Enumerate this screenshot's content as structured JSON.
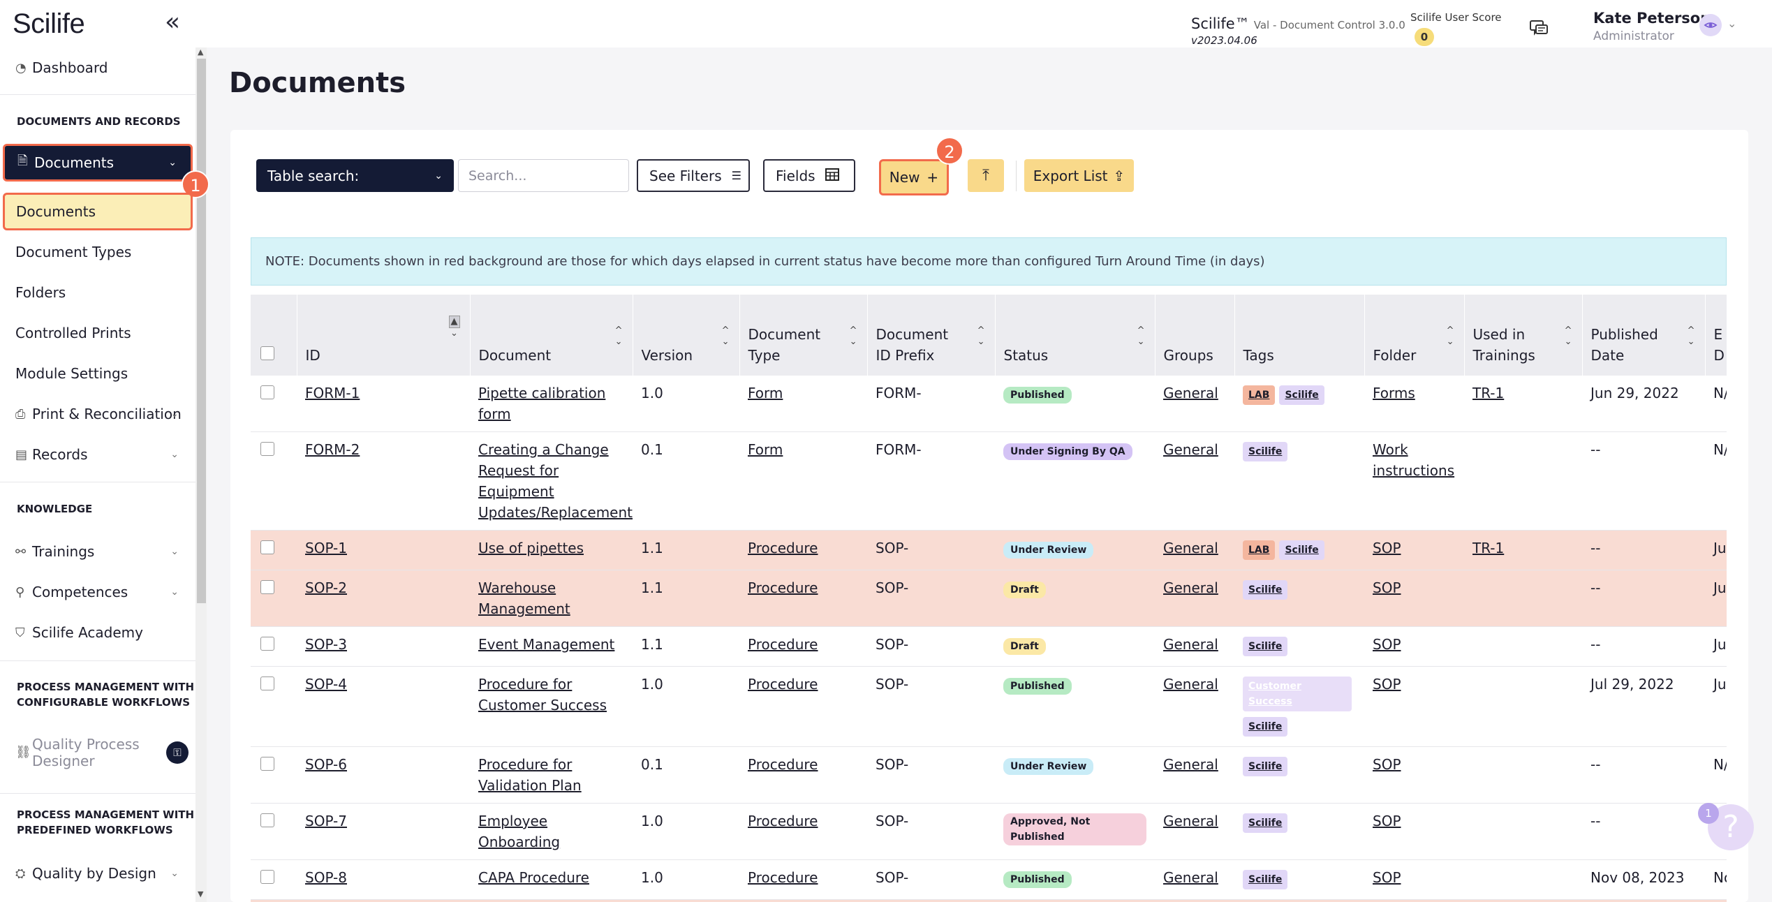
{
  "header": {
    "logo": "Scilife",
    "app_name": "Scilife™",
    "app_env": "Val - Document Control 3.0.0",
    "app_version": "v2023.04.06",
    "score_label": "Scilife User Score",
    "score_value": "0",
    "user_name": "Kate Peterson",
    "user_role": "Administrator"
  },
  "sidebar": {
    "dashboard": "Dashboard",
    "section_docs": "DOCUMENTS AND RECORDS",
    "documents_parent": "Documents",
    "documents_child": "Documents",
    "document_types": "Document Types",
    "folders": "Folders",
    "controlled_prints": "Controlled Prints",
    "module_settings": "Module Settings",
    "print_reconciliation": "Print & Reconciliation",
    "records": "Records",
    "section_knowledge": "KNOWLEDGE",
    "trainings": "Trainings",
    "competences": "Competences",
    "academy": "Scilife Academy",
    "section_pm_config_1": "PROCESS MANAGEMENT WITH",
    "section_pm_config_2": "CONFIGURABLE WORKFLOWS",
    "qpd_1": "Quality Process",
    "qpd_2": "Designer",
    "section_pm_pre_1": "PROCESS MANAGEMENT WITH",
    "section_pm_pre_2": "PREDEFINED WORKFLOWS",
    "qbd": "Quality by Design",
    "step1": "1",
    "step2": "2"
  },
  "main": {
    "title": "Documents",
    "table_search": "Table search:",
    "search_placeholder": "Search...",
    "see_filters": "See Filters",
    "fields": "Fields",
    "new": "New",
    "export": "Export List",
    "note": "NOTE: Documents shown in red background are those for which days elapsed in current status have become more than configured Turn Around Time (in days)"
  },
  "table": {
    "headers": {
      "id": "ID",
      "document": "Document",
      "version": "Version",
      "type_1": "Document",
      "type_2": "Type",
      "prefix_1": "Document",
      "prefix_2": "ID Prefix",
      "status": "Status",
      "groups": "Groups",
      "tags": "Tags",
      "folder": "Folder",
      "used_1": "Used in",
      "used_2": "Trainings",
      "pub_1": "Published",
      "pub_2": "Date",
      "last_1": "E",
      "last_2": "D"
    },
    "rows": [
      {
        "id": "FORM-1",
        "doc": "Pipette calibration form",
        "version": "1.0",
        "type": "Form",
        "prefix": "FORM-",
        "status": "Published",
        "group": "General",
        "folder": "Forms",
        "training": "TR-1",
        "date": "Jun 29, 2022",
        "last": "N/"
      },
      {
        "id": "FORM-2",
        "doc": "Creating a Change Request for Equipment Updates/Replacement",
        "version": "0.1",
        "type": "Form",
        "prefix": "FORM-",
        "status": "Under Signing By QA",
        "group": "General",
        "folder": "Work instructions",
        "training": "",
        "date": "--",
        "last": "N/"
      },
      {
        "id": "SOP-1",
        "doc": "Use of pipettes",
        "version": "1.1",
        "type": "Procedure",
        "prefix": "SOP-",
        "status": "Under Review",
        "group": "General",
        "folder": "SOP",
        "training": "TR-1",
        "date": "--",
        "last": "Ju"
      },
      {
        "id": "SOP-2",
        "doc": "Warehouse Management",
        "version": "1.1",
        "type": "Procedure",
        "prefix": "SOP-",
        "status": "Draft",
        "group": "General",
        "folder": "SOP",
        "training": "",
        "date": "--",
        "last": "Ju"
      },
      {
        "id": "SOP-3",
        "doc": "Event Management",
        "version": "1.1",
        "type": "Procedure",
        "prefix": "SOP-",
        "status": "Draft",
        "group": "General",
        "folder": "SOP",
        "training": "",
        "date": "--",
        "last": "Ju"
      },
      {
        "id": "SOP-4",
        "doc": "Procedure for Customer Success",
        "version": "1.0",
        "type": "Procedure",
        "prefix": "SOP-",
        "status": "Published",
        "group": "General",
        "folder": "SOP",
        "training": "",
        "date": "Jul 29, 2022",
        "last": "Ju"
      },
      {
        "id": "SOP-6",
        "doc": "Procedure for Validation Plan",
        "version": "0.1",
        "type": "Procedure",
        "prefix": "SOP-",
        "status": "Under Review",
        "group": "General",
        "folder": "SOP",
        "training": "",
        "date": "--",
        "last": "N/"
      },
      {
        "id": "SOP-7",
        "doc": "Employee Onboarding",
        "version": "1.0",
        "type": "Procedure",
        "prefix": "SOP-",
        "status": "Approved, Not Published",
        "group": "General",
        "folder": "SOP",
        "training": "",
        "date": "--",
        "last": "Ju"
      },
      {
        "id": "SOP-8",
        "doc": "CAPA Procedure",
        "version": "1.0",
        "type": "Procedure",
        "prefix": "SOP-",
        "status": "Published",
        "group": "General",
        "folder": "SOP",
        "training": "",
        "date": "Nov 08, 2023",
        "last": "No"
      }
    ],
    "tags": {
      "lab": "LAB",
      "scilife": "Scilife",
      "customer_success": "Customer Success"
    }
  },
  "help": {
    "count": "1",
    "symbol": "?"
  },
  "colors": {
    "accent": "#f26a4b",
    "navy": "#141b35",
    "highlight": "#fbeeb7",
    "published": "#b6eac3",
    "under_signing": "#d4c3f5",
    "under_review": "#c9ecf7",
    "draft": "#fbe8a6",
    "approved": "#f6d0dc"
  }
}
